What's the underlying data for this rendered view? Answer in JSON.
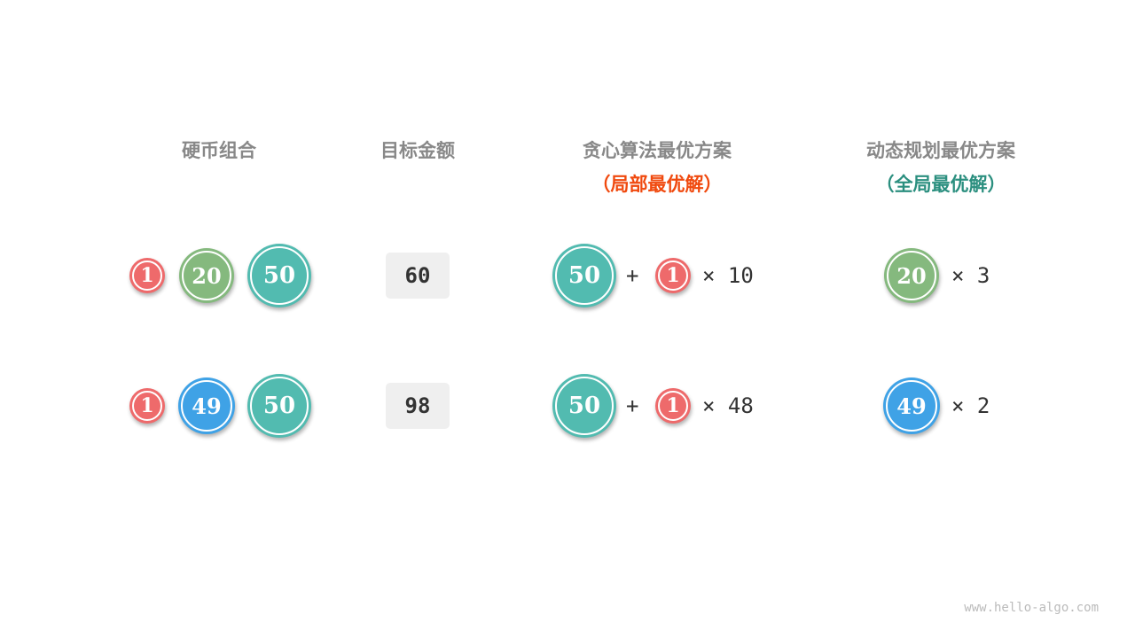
{
  "headers": {
    "coins": "硬币组合",
    "target": "目标金额",
    "greedy": "贪心算法最优方案",
    "greedy_note": "（局部最优解）",
    "dp": "动态规划最优方案",
    "dp_note": "（全局最优解）"
  },
  "colors": {
    "header": "#888888",
    "greedy_note": "#f0490e",
    "dp_note": "#2b8f7f",
    "coin_1": "#ee6a6b",
    "coin_20": "#85b97e",
    "coin_49": "#3fa2e6",
    "coin_50": "#52bbb0"
  },
  "rows": [
    {
      "coins": [
        "1",
        "20",
        "50"
      ],
      "target": "60",
      "greedy": {
        "coin_a": "50",
        "plus": "+",
        "coin_b": "1",
        "times": "× 10"
      },
      "dp": {
        "coin": "20",
        "times": "× 3"
      }
    },
    {
      "coins": [
        "1",
        "49",
        "50"
      ],
      "target": "98",
      "greedy": {
        "coin_a": "50",
        "plus": "+",
        "coin_b": "1",
        "times": "× 48"
      },
      "dp": {
        "coin": "49",
        "times": "× 2"
      }
    }
  ],
  "footer": "www.hello-algo.com"
}
